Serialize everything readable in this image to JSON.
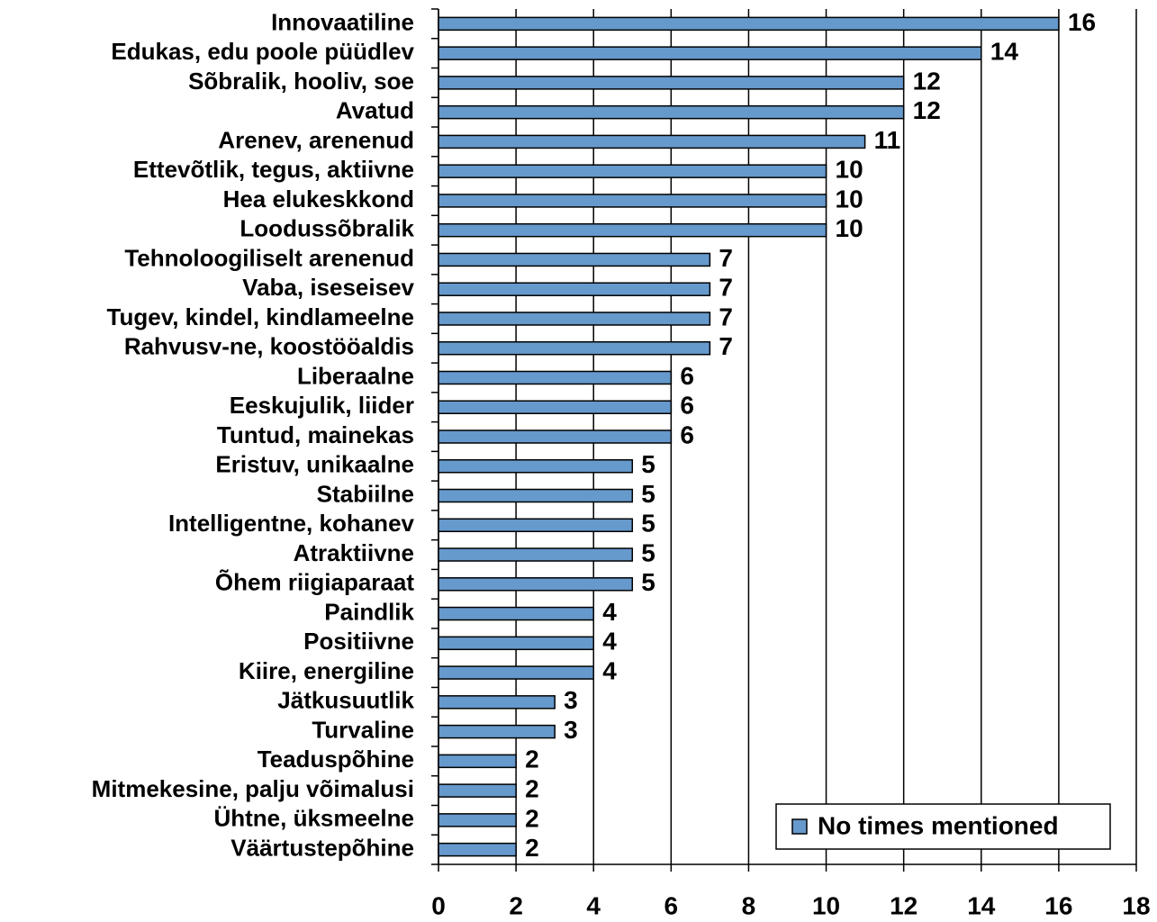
{
  "chart_data": {
    "type": "barh",
    "categories": [
      "Innovaatiline",
      "Edukas, edu poole püüdlev",
      "Sõbralik, hooliv, soe",
      "Avatud",
      "Arenev, arenenud",
      "Ettevõtlik, tegus, aktiivne",
      "Hea elukeskkond",
      "Loodussõbralik",
      "Tehnoloogiliselt arenenud",
      "Vaba, iseseisev",
      "Tugev, kindel, kindlameelne",
      "Rahvusv-ne, koostööaldis",
      "Liberaalne",
      "Eeskujulik, liider",
      "Tuntud, mainekas",
      "Eristuv, unikaalne",
      "Stabiilne",
      "Intelligentne, kohanev",
      "Atraktiivne",
      "Õhem riigiaparaat",
      "Paindlik",
      "Positiivne",
      "Kiire, energiline",
      "Jätkusuutlik",
      "Turvaline",
      "Teaduspõhine",
      "Mitmekesine, palju võimalusi",
      "Ühtne, üksmeelne",
      "Väärtustepõhine"
    ],
    "series": [
      {
        "name": "No times mentioned",
        "color": "#6699cc",
        "values": [
          16,
          14,
          12,
          12,
          11,
          10,
          10,
          10,
          7,
          7,
          7,
          7,
          6,
          6,
          6,
          5,
          5,
          5,
          5,
          5,
          4,
          4,
          4,
          3,
          3,
          2,
          2,
          2,
          2
        ]
      }
    ],
    "xlim": [
      0,
      18
    ],
    "xticks": [
      0,
      2,
      4,
      6,
      8,
      10,
      12,
      14,
      16,
      18
    ],
    "grid": true,
    "legend": "lower right"
  }
}
